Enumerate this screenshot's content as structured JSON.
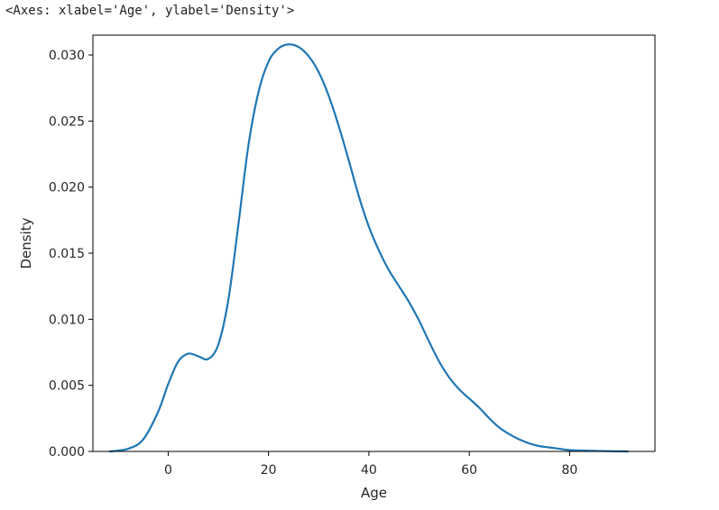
{
  "output_repr": "<Axes: xlabel='Age', ylabel='Density'>",
  "chart_data": {
    "type": "line",
    "title": "",
    "xlabel": "Age",
    "ylabel": "Density",
    "xlim": [
      -15,
      97
    ],
    "ylim": [
      0,
      0.0315
    ],
    "xticks": [
      0,
      20,
      40,
      60,
      80
    ],
    "yticks": [
      0.0,
      0.005,
      0.01,
      0.015,
      0.02,
      0.025,
      0.03
    ],
    "ytick_labels": [
      "0.000",
      "0.005",
      "0.010",
      "0.015",
      "0.020",
      "0.025",
      "0.030"
    ],
    "grid": false,
    "line_color": "#1f77b4",
    "series": [
      {
        "x": [
          -11.6,
          -8,
          -5,
          -2,
          0,
          2,
          4,
          6,
          8,
          10,
          12,
          14,
          16,
          18,
          20,
          22,
          24,
          26,
          28,
          30,
          32,
          34,
          36,
          38,
          40,
          42,
          44,
          46,
          48,
          50,
          52,
          54,
          56,
          58,
          60,
          62,
          64,
          66,
          68,
          70,
          72,
          74,
          76,
          78,
          80,
          84,
          88,
          91.6
        ],
        "y": [
          0.0,
          0.0002,
          0.0009,
          0.003,
          0.0051,
          0.0068,
          0.0074,
          0.0072,
          0.007,
          0.0081,
          0.0115,
          0.0172,
          0.0232,
          0.0272,
          0.0295,
          0.0305,
          0.0308,
          0.0306,
          0.0299,
          0.0287,
          0.0269,
          0.0246,
          0.022,
          0.0193,
          0.017,
          0.0152,
          0.0137,
          0.0125,
          0.0113,
          0.0099,
          0.0083,
          0.0068,
          0.0056,
          0.0047,
          0.004,
          0.0033,
          0.0025,
          0.0018,
          0.0013,
          0.0009,
          0.0006,
          0.0004,
          0.0003,
          0.0002,
          0.0001,
          5e-05,
          2e-05,
          0.0
        ]
      }
    ]
  }
}
